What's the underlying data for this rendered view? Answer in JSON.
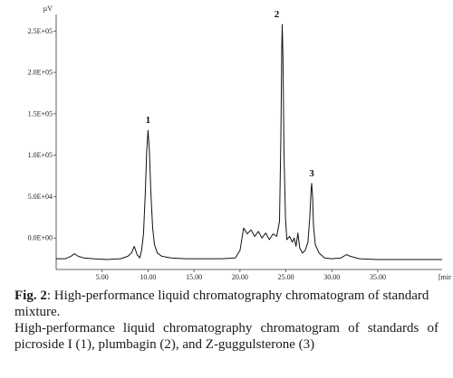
{
  "chart_data": {
    "type": "line",
    "ylabel": "µV",
    "xlabel": "[min]",
    "xlim": [
      0,
      42
    ],
    "ylim": [
      -0.38,
      2.7
    ],
    "y_unit_scale": 100000,
    "x_ticks": [
      {
        "value": 5,
        "label": "5.00"
      },
      {
        "value": 10,
        "label": "10.00"
      },
      {
        "value": 15,
        "label": "15.00"
      },
      {
        "value": 20,
        "label": "20.00"
      },
      {
        "value": 25,
        "label": "25.00"
      },
      {
        "value": 30,
        "label": "30.00"
      },
      {
        "value": 35,
        "label": "35.00"
      }
    ],
    "y_ticks": [
      {
        "value": 0.0,
        "label": "0.0E+00"
      },
      {
        "value": 0.5,
        "label": "5.0E+04"
      },
      {
        "value": 1.0,
        "label": "1.0E+05"
      },
      {
        "value": 1.5,
        "label": "1.5E+05"
      },
      {
        "value": 2.0,
        "label": "2.0E+05"
      },
      {
        "value": 2.5,
        "label": "2.5E+05"
      }
    ],
    "peaks": [
      {
        "label": "1",
        "x": 10.0,
        "y": 1.3
      },
      {
        "label": "2",
        "x": 24.6,
        "y": 2.58
      },
      {
        "label": "3",
        "x": 27.8,
        "y": 0.66
      }
    ],
    "series": [
      {
        "color": "#111111",
        "points": [
          [
            0.0,
            -0.25
          ],
          [
            1.0,
            -0.25
          ],
          [
            1.6,
            -0.22
          ],
          [
            2.0,
            -0.19
          ],
          [
            2.4,
            -0.22
          ],
          [
            3.0,
            -0.24
          ],
          [
            4.0,
            -0.25
          ],
          [
            5.5,
            -0.26
          ],
          [
            7.0,
            -0.25
          ],
          [
            7.8,
            -0.22
          ],
          [
            8.2,
            -0.18
          ],
          [
            8.5,
            -0.1
          ],
          [
            8.8,
            -0.2
          ],
          [
            9.1,
            -0.24
          ],
          [
            9.3,
            -0.15
          ],
          [
            9.5,
            0.05
          ],
          [
            9.7,
            0.55
          ],
          [
            9.85,
            1.05
          ],
          [
            10.0,
            1.3
          ],
          [
            10.15,
            1.05
          ],
          [
            10.3,
            0.55
          ],
          [
            10.5,
            0.12
          ],
          [
            10.7,
            -0.08
          ],
          [
            11.0,
            -0.18
          ],
          [
            11.5,
            -0.22
          ],
          [
            12.5,
            -0.24
          ],
          [
            14.0,
            -0.25
          ],
          [
            16.0,
            -0.25
          ],
          [
            18.0,
            -0.25
          ],
          [
            19.5,
            -0.24
          ],
          [
            20.0,
            -0.15
          ],
          [
            20.4,
            0.12
          ],
          [
            20.8,
            0.05
          ],
          [
            21.2,
            0.1
          ],
          [
            21.6,
            0.02
          ],
          [
            22.0,
            0.08
          ],
          [
            22.4,
            0.0
          ],
          [
            22.8,
            0.06
          ],
          [
            23.2,
            -0.02
          ],
          [
            23.6,
            0.05
          ],
          [
            24.0,
            0.02
          ],
          [
            24.3,
            0.2
          ],
          [
            24.45,
            1.2
          ],
          [
            24.55,
            2.3
          ],
          [
            24.6,
            2.58
          ],
          [
            24.68,
            2.2
          ],
          [
            24.8,
            1.0
          ],
          [
            24.95,
            0.25
          ],
          [
            25.1,
            -0.02
          ],
          [
            25.4,
            0.02
          ],
          [
            25.7,
            -0.05
          ],
          [
            25.9,
            0.0
          ],
          [
            26.1,
            -0.1
          ],
          [
            26.3,
            0.06
          ],
          [
            26.5,
            -0.12
          ],
          [
            26.8,
            -0.18
          ],
          [
            27.1,
            -0.15
          ],
          [
            27.4,
            -0.05
          ],
          [
            27.6,
            0.25
          ],
          [
            27.75,
            0.6
          ],
          [
            27.8,
            0.66
          ],
          [
            27.9,
            0.5
          ],
          [
            28.0,
            0.15
          ],
          [
            28.2,
            -0.08
          ],
          [
            28.6,
            -0.18
          ],
          [
            29.2,
            -0.24
          ],
          [
            30.0,
            -0.25
          ],
          [
            31.0,
            -0.24
          ],
          [
            31.6,
            -0.2
          ],
          [
            32.0,
            -0.22
          ],
          [
            33.0,
            -0.25
          ],
          [
            35.0,
            -0.26
          ],
          [
            38.0,
            -0.26
          ],
          [
            42.0,
            -0.26
          ]
        ]
      }
    ]
  },
  "caption": {
    "fig_label": "Fig. 2",
    "fig_text": ": High-performance liquid chromatography chromatogram of standard mixture.",
    "description": "High-performance liquid chromatography chromatogram of standards of picroside I (1), plumbagin (2), and Z-guggulsterone (3)"
  }
}
